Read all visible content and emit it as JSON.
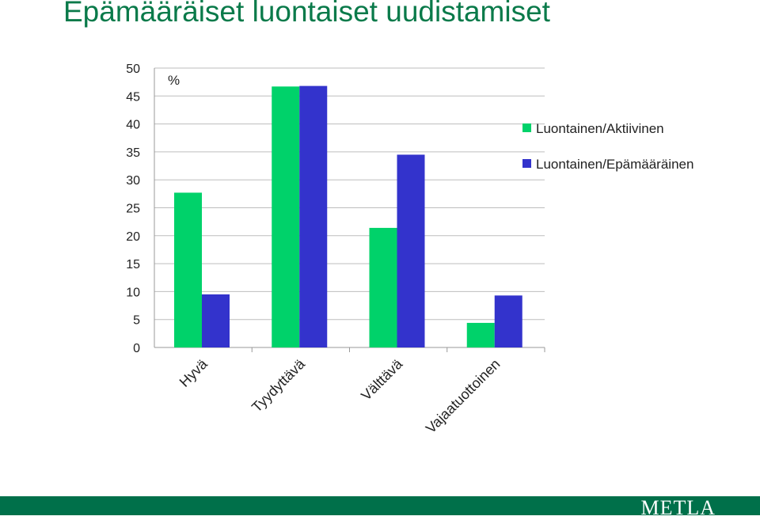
{
  "slide": {
    "title": "Epämääräiset luontaiset uudistamiset",
    "logo": "METLA"
  },
  "colors": {
    "title": "#0a7a4a",
    "footer": "#00704a",
    "series_1": "#00d26a",
    "series_2": "#3333cc"
  },
  "chart_data": {
    "type": "bar",
    "ylabel": "%",
    "ylim": [
      0,
      50
    ],
    "yticks": [
      0,
      5,
      10,
      15,
      20,
      25,
      30,
      35,
      40,
      45,
      50
    ],
    "categories": [
      "Hyvä",
      "Tyydyttävä",
      "Välttävä",
      "Vajaatuottoinen"
    ],
    "series": [
      {
        "name": "Luontainen/Aktiivinen",
        "values": [
          27.7,
          46.7,
          21.4,
          4.4
        ]
      },
      {
        "name": "Luontainen/Epämääräinen",
        "values": [
          9.5,
          46.8,
          34.5,
          9.3
        ]
      }
    ],
    "grid": true,
    "legend": "right"
  }
}
